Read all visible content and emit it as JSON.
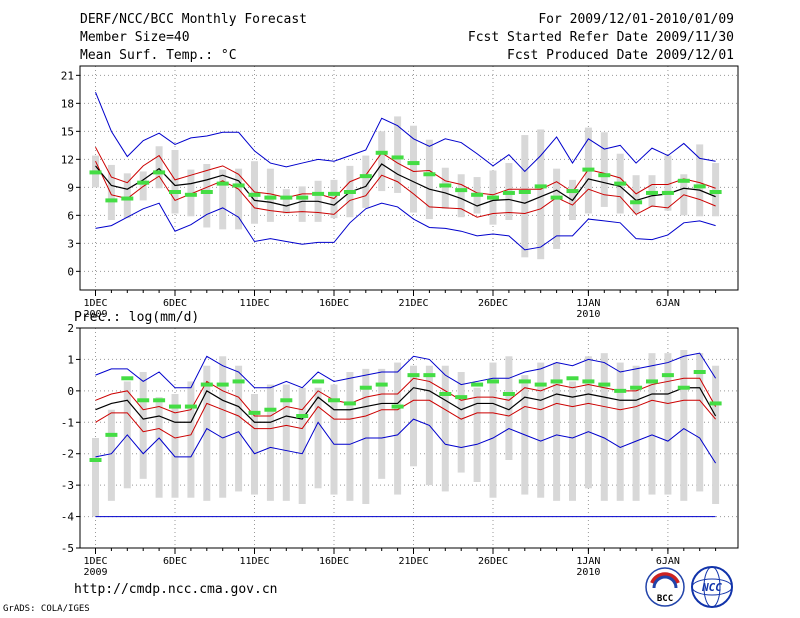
{
  "header": {
    "title": "DERF/NCC/BCC Monthly Forecast",
    "member_size": "Member Size=40",
    "variable": "Mean Surf. Temp.: °C",
    "period": "For 2009/12/01-2010/01/09",
    "started": "Fcst Started Refer Date 2009/11/30",
    "produced": "Fcst Produced Date 2009/12/01"
  },
  "precip_label": "Prec.: log(mm/d)",
  "footer": {
    "url": "http://cmdp.ncc.cma.gov.cn",
    "grads": "GrADS: COLA/IGES",
    "logo1_text": "BCC",
    "logo2_text": "NCC"
  },
  "colors": {
    "max": "#0000cc",
    "pct": "#cc0000",
    "mean": "#000000",
    "obs": "#44dd44",
    "box": "#d8d8d8"
  },
  "chart_data": [
    {
      "type": "line",
      "title": "Mean Surf. Temp.: °C",
      "x": [
        "1",
        "2",
        "3",
        "4",
        "5",
        "6",
        "7",
        "8",
        "9",
        "10",
        "11",
        "12",
        "13",
        "14",
        "15",
        "16",
        "17",
        "18",
        "19",
        "20",
        "21",
        "22",
        "23",
        "24",
        "25",
        "26",
        "27",
        "28",
        "29",
        "30",
        "31",
        "32",
        "33",
        "34",
        "35",
        "36",
        "37",
        "38",
        "39",
        "40"
      ],
      "xticks": [
        {
          "label": "1DEC",
          "sub": "2009",
          "day": 1
        },
        {
          "label": "6DEC",
          "sub": "",
          "day": 6
        },
        {
          "label": "11DEC",
          "sub": "",
          "day": 11
        },
        {
          "label": "16DEC",
          "sub": "",
          "day": 16
        },
        {
          "label": "21DEC",
          "sub": "",
          "day": 21
        },
        {
          "label": "26DEC",
          "sub": "",
          "day": 26
        },
        {
          "label": "1JAN",
          "sub": "2010",
          "day": 32
        },
        {
          "label": "6JAN",
          "sub": "",
          "day": 37
        }
      ],
      "ylim": [
        -2,
        22
      ],
      "yticks": [
        "0",
        "3",
        "6",
        "9",
        "12",
        "15",
        "18",
        "21"
      ],
      "series": [
        {
          "name": "max",
          "values": [
            19.2,
            15,
            12.3,
            14,
            14.8,
            13.6,
            14.3,
            14.5,
            14.9,
            14.9,
            12.9,
            11.6,
            11.2,
            11.6,
            12,
            11.8,
            12.4,
            13,
            16.4,
            15.6,
            14.2,
            13.4,
            14.2,
            13.8,
            12.6,
            11.3,
            12.5,
            10.7,
            12.4,
            14.4,
            11.6,
            14.2,
            13.1,
            13.5,
            11.6,
            13.2,
            12.4,
            13.7,
            12.1,
            11.8
          ]
        },
        {
          "name": "upper_pct",
          "values": [
            13.3,
            10.1,
            9.5,
            11.3,
            12.4,
            9.8,
            10.3,
            10.8,
            11.3,
            10.4,
            8.5,
            8.3,
            7.9,
            8.3,
            8.3,
            7.8,
            9.6,
            10.3,
            12.7,
            11.6,
            10.7,
            10.8,
            9.7,
            9.3,
            8.4,
            8.2,
            8.8,
            8.8,
            8.8,
            9.6,
            8.5,
            10.9,
            10.5,
            10,
            8.3,
            9.3,
            9.3,
            9.9,
            9.5,
            8.9
          ]
        },
        {
          "name": "mean",
          "values": [
            11.3,
            9.2,
            8.8,
            9.8,
            11,
            9.2,
            9.4,
            9.8,
            10.3,
            9.7,
            7.6,
            7.4,
            7,
            7.5,
            7.5,
            7.1,
            8.5,
            9.1,
            11.5,
            10.4,
            9.6,
            8.8,
            8.4,
            7.8,
            7,
            7.6,
            7.7,
            7.3,
            8,
            8.7,
            7.6,
            9.9,
            9.5,
            9.1,
            7.6,
            8.1,
            8.3,
            8.9,
            8.7,
            8
          ]
        },
        {
          "name": "lower_pct",
          "values": [
            11.8,
            8.2,
            7.8,
            9.1,
            10.2,
            7.6,
            8.3,
            9,
            9.7,
            8.8,
            6.8,
            6.5,
            6.3,
            6.4,
            6.3,
            6.1,
            7.6,
            8.1,
            10.3,
            9.6,
            8.3,
            6.9,
            6.8,
            6.7,
            5.8,
            6.2,
            6.3,
            6.2,
            6.7,
            7.9,
            7.1,
            8.8,
            8.2,
            8,
            6.1,
            7,
            6.8,
            8.2,
            7.7,
            7
          ]
        },
        {
          "name": "min",
          "values": [
            4.6,
            4.9,
            5.8,
            6.7,
            7.3,
            4.3,
            5,
            6.1,
            6.8,
            5.8,
            3.2,
            3.5,
            3.2,
            2.9,
            3.1,
            3.1,
            5.2,
            6.7,
            7.3,
            6.9,
            5.6,
            4.7,
            4.6,
            4.3,
            3.8,
            4,
            3.8,
            2.3,
            2.6,
            3.8,
            3.8,
            5.6,
            5.4,
            5.2,
            3.5,
            3.4,
            3.9,
            5.2,
            5.4,
            4.9
          ]
        },
        {
          "name": "obs",
          "values": [
            10.6,
            7.6,
            7.8,
            9.5,
            10.6,
            8.5,
            8.2,
            8.5,
            9.4,
            9.2,
            8.2,
            7.9,
            7.9,
            7.9,
            8.3,
            8.3,
            8.5,
            10.2,
            12.7,
            12.2,
            11.6,
            10.4,
            9.2,
            8.7,
            8.2,
            7.9,
            8.4,
            8.5,
            9.1,
            7.9,
            8.6,
            10.9,
            10.3,
            9.4,
            7.4,
            8.4,
            8.4,
            9.7,
            9.1,
            8.5
          ]
        },
        {
          "name": "box_top",
          "values": [
            12.4,
            11.4,
            10.5,
            10.7,
            13.4,
            13,
            10.9,
            11.5,
            10.9,
            11,
            11.8,
            11,
            8.8,
            9.1,
            9.7,
            9.8,
            11.3,
            12.4,
            15,
            16.6,
            15.6,
            14.1,
            11.1,
            10.4,
            10.1,
            10.8,
            11.6,
            14.6,
            15.2,
            11,
            9.8,
            15.4,
            14.9,
            12.6,
            10.3,
            10.3,
            12.4,
            10.4,
            13.6,
            11.6
          ]
        },
        {
          "name": "box_bottom",
          "values": [
            9,
            5.5,
            5.7,
            7.6,
            8.9,
            6.2,
            5.9,
            4.7,
            4.5,
            4.5,
            5.1,
            5.3,
            6.2,
            5.3,
            5.3,
            5.7,
            5.8,
            6.8,
            8.6,
            8.4,
            6.3,
            5.6,
            6.7,
            5.8,
            6.2,
            5,
            5.5,
            1.5,
            1.3,
            2.4,
            5.5,
            6.2,
            6.9,
            6.2,
            6.2,
            6.9,
            6.5,
            6,
            5.9,
            5.9
          ]
        }
      ]
    },
    {
      "type": "line",
      "title": "Prec.: log(mm/d)",
      "x": [
        "1",
        "2",
        "3",
        "4",
        "5",
        "6",
        "7",
        "8",
        "9",
        "10",
        "11",
        "12",
        "13",
        "14",
        "15",
        "16",
        "17",
        "18",
        "19",
        "20",
        "21",
        "22",
        "23",
        "24",
        "25",
        "26",
        "27",
        "28",
        "29",
        "30",
        "31",
        "32",
        "33",
        "34",
        "35",
        "36",
        "37",
        "38",
        "39",
        "40"
      ],
      "xticks": [
        {
          "label": "1DEC",
          "sub": "2009",
          "day": 1
        },
        {
          "label": "6DEC",
          "sub": "",
          "day": 6
        },
        {
          "label": "11DEC",
          "sub": "",
          "day": 11
        },
        {
          "label": "16DEC",
          "sub": "",
          "day": 16
        },
        {
          "label": "21DEC",
          "sub": "",
          "day": 21
        },
        {
          "label": "26DEC",
          "sub": "",
          "day": 26
        },
        {
          "label": "1JAN",
          "sub": "2010",
          "day": 32
        },
        {
          "label": "6JAN",
          "sub": "",
          "day": 37
        }
      ],
      "ylim": [
        -5,
        2
      ],
      "yticks": [
        "-5",
        "-4",
        "-3",
        "-2",
        "-1",
        "0",
        "1",
        "2"
      ],
      "series": [
        {
          "name": "max",
          "values": [
            0.5,
            0.7,
            0.7,
            0.3,
            0.6,
            0.1,
            0.1,
            1.1,
            0.8,
            0.6,
            0.1,
            0.1,
            0.3,
            0.1,
            0.6,
            0.3,
            0.4,
            0.5,
            0.6,
            0.6,
            1.1,
            1,
            0.5,
            0.2,
            0.3,
            0.4,
            0.4,
            0.6,
            0.7,
            0.9,
            0.8,
            1,
            0.9,
            0.6,
            0.7,
            0.8,
            0.9,
            1.1,
            1.2,
            0.4
          ]
        },
        {
          "name": "upper_pct",
          "values": [
            -0.3,
            -0.1,
            0,
            -0.6,
            -0.5,
            -0.7,
            -0.6,
            0.3,
            0,
            -0.2,
            -0.8,
            -0.8,
            -0.5,
            -0.6,
            0,
            -0.3,
            -0.4,
            -0.2,
            -0.1,
            -0.1,
            0.4,
            0.3,
            0,
            -0.3,
            -0.2,
            -0.2,
            -0.3,
            0.1,
            0,
            0.2,
            0.1,
            0.2,
            0.1,
            0,
            0,
            0.2,
            0.3,
            0.4,
            0.4,
            -0.5
          ]
        },
        {
          "name": "mean",
          "values": [
            -0.6,
            -0.4,
            -0.3,
            -0.9,
            -0.8,
            -1,
            -1,
            0,
            -0.3,
            -0.5,
            -1,
            -1,
            -0.8,
            -0.9,
            -0.2,
            -0.6,
            -0.6,
            -0.5,
            -0.4,
            -0.4,
            0.1,
            0,
            -0.3,
            -0.6,
            -0.4,
            -0.4,
            -0.6,
            -0.2,
            -0.3,
            -0.1,
            -0.2,
            -0.1,
            -0.2,
            -0.3,
            -0.3,
            -0.1,
            -0.1,
            0.1,
            0.1,
            -0.8
          ]
        },
        {
          "name": "lower_pct",
          "values": [
            -1,
            -0.7,
            -0.7,
            -1.3,
            -1.2,
            -1.5,
            -1.4,
            -0.4,
            -0.6,
            -0.8,
            -1.2,
            -1.2,
            -1.1,
            -1.2,
            -0.5,
            -0.9,
            -0.9,
            -0.8,
            -0.6,
            -0.6,
            -0.3,
            -0.3,
            -0.6,
            -0.9,
            -0.7,
            -0.7,
            -0.8,
            -0.5,
            -0.6,
            -0.4,
            -0.5,
            -0.4,
            -0.5,
            -0.6,
            -0.5,
            -0.3,
            -0.4,
            -0.3,
            -0.3,
            -0.9
          ]
        },
        {
          "name": "min",
          "values": [
            -2.1,
            -2,
            -1.4,
            -2,
            -1.5,
            -2.1,
            -2.1,
            -1.2,
            -1.5,
            -1.3,
            -2,
            -1.8,
            -1.9,
            -2,
            -1,
            -1.7,
            -1.7,
            -1.5,
            -1.5,
            -1.4,
            -0.9,
            -1.1,
            -1.7,
            -1.8,
            -1.7,
            -1.5,
            -1.2,
            -1.4,
            -1.6,
            -1.4,
            -1.5,
            -1.3,
            -1.5,
            -1.8,
            -1.6,
            -1.4,
            -1.6,
            -1.2,
            -1.5,
            -2.3
          ]
        },
        {
          "name": "obs",
          "values": [
            -2.2,
            -1.4,
            0.4,
            -0.3,
            -0.3,
            -0.5,
            -0.5,
            0.2,
            0.2,
            0.3,
            -0.7,
            -0.6,
            -0.3,
            -0.8,
            0.3,
            -0.3,
            -0.4,
            0.1,
            0.2,
            -0.5,
            0.5,
            0.5,
            -0.1,
            -0.2,
            0.2,
            0.3,
            -0.1,
            0.3,
            0.2,
            0.3,
            0.4,
            0.3,
            0.2,
            0,
            0.1,
            0.3,
            0.5,
            0.1,
            0.6,
            -0.4
          ]
        },
        {
          "name": "box_top",
          "values": [
            -1.5,
            -0.6,
            0.3,
            0.6,
            -0.2,
            -0.1,
            0.3,
            0.8,
            1.1,
            0.8,
            -0.1,
            0.2,
            0.2,
            0.1,
            0.1,
            0.2,
            0.6,
            0.7,
            0.7,
            0.9,
            0.8,
            0.8,
            0.8,
            0.6,
            0.1,
            0.9,
            1.1,
            0.5,
            0.9,
            0.9,
            0.3,
            1.1,
            1.2,
            0.9,
            0.8,
            1.2,
            1.2,
            1.3,
            1.2,
            0.8
          ]
        },
        {
          "name": "box_bottom",
          "values": [
            -4,
            -3.5,
            -3.1,
            -2.8,
            -3.4,
            -3.4,
            -3.4,
            -3.5,
            -3.4,
            -3.2,
            -3.3,
            -3.5,
            -3.5,
            -3.6,
            -3.1,
            -3.3,
            -3.5,
            -3.6,
            -2.8,
            -3.3,
            -2.4,
            -3,
            -3.2,
            -2.6,
            -2.9,
            -3.4,
            -2.2,
            -3.3,
            -3.4,
            -3.5,
            -3.5,
            -3.1,
            -3.5,
            -3.5,
            -3.5,
            -3.3,
            -3.3,
            -3.5,
            -3.2,
            -3.6
          ]
        },
        {
          "name": "floor",
          "values": [
            -4,
            -4,
            -4,
            -4,
            -4,
            -4,
            -4,
            -4,
            -4,
            -4,
            -4,
            -4,
            -4,
            -4,
            -4,
            -4,
            -4,
            -4,
            -4,
            -4,
            -4,
            -4,
            -4,
            -4,
            -4,
            -4,
            -4,
            -4,
            -4,
            -4,
            -4,
            -4,
            -4,
            -4,
            -4,
            -4,
            -4,
            -4,
            -4,
            -4
          ]
        }
      ]
    }
  ]
}
